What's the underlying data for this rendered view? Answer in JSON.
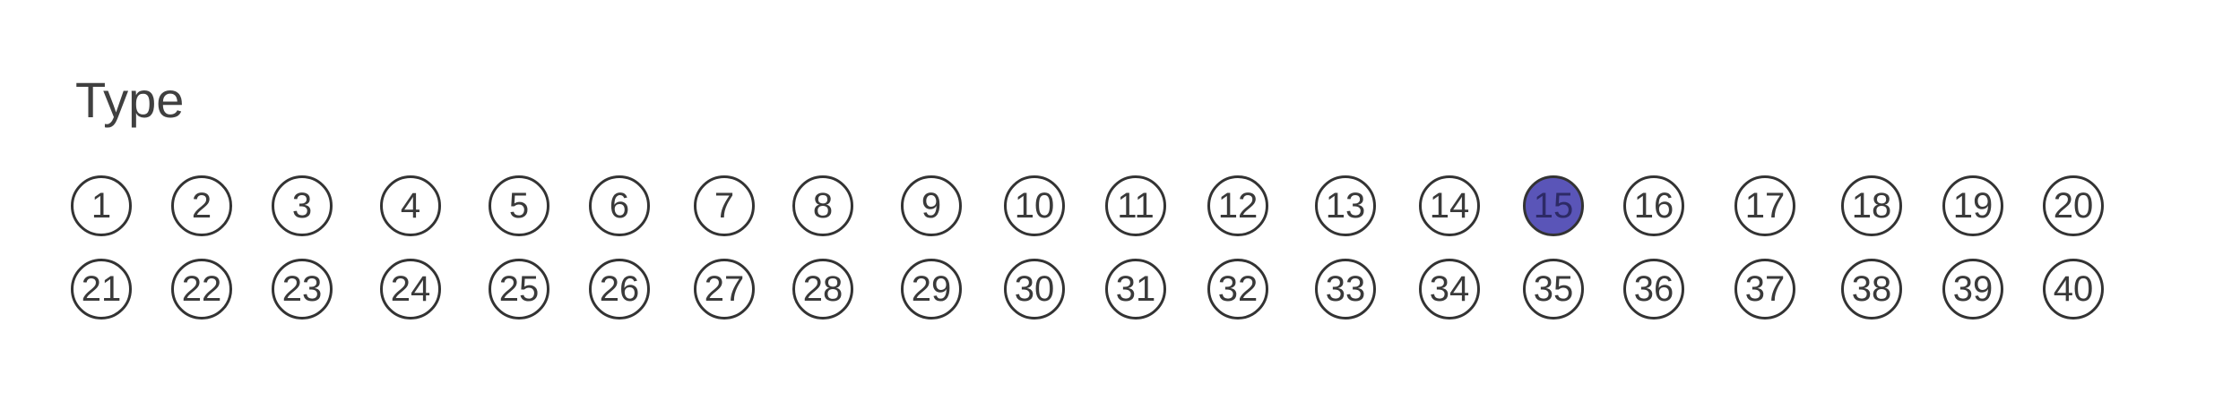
{
  "section": {
    "title": "Type",
    "selected": "15",
    "fill_color": "#5a55b8",
    "rows": [
      [
        "1",
        "2",
        "3",
        "4",
        "5",
        "6",
        "7",
        "8",
        "9",
        "10",
        "11",
        "12",
        "13",
        "14",
        "15",
        "16",
        "17",
        "18",
        "19",
        "20"
      ],
      [
        "21",
        "22",
        "23",
        "24",
        "25",
        "26",
        "27",
        "28",
        "29",
        "30",
        "31",
        "32",
        "33",
        "34",
        "35",
        "36",
        "37",
        "38",
        "39",
        "40"
      ]
    ]
  }
}
